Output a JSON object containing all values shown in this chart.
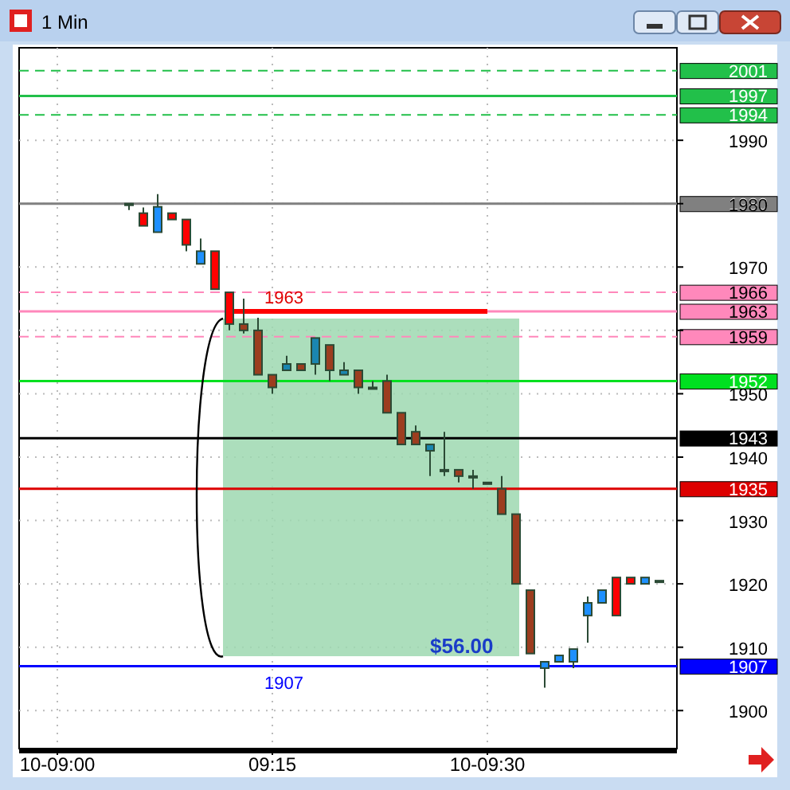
{
  "chart_data": {
    "type": "candlestick",
    "title": "1 Min",
    "categories": [
      "10-09:00",
      null,
      null,
      null,
      null,
      null,
      null,
      null,
      null,
      null,
      null,
      null,
      null,
      null,
      null,
      "09:15",
      null,
      null,
      null,
      null,
      null,
      null,
      null,
      null,
      null,
      null,
      null,
      null,
      null,
      null,
      "10-09:30",
      null,
      null,
      null,
      null,
      null,
      null,
      null,
      null,
      null,
      null,
      null,
      null
    ],
    "ohlc": [
      null,
      null,
      null,
      null,
      null,
      [
        1980,
        1980,
        1979,
        1980
      ],
      [
        1978.5,
        1979.4,
        1976.5,
        1976.5
      ],
      [
        1975.5,
        1981.5,
        1975.5,
        1979.5
      ],
      [
        1978.5,
        1978.5,
        1977.5,
        1977.5
      ],
      [
        1977.5,
        1977.5,
        1972.5,
        1973.5
      ],
      [
        1970.5,
        1974.5,
        1970.5,
        1972.5
      ],
      [
        1972.5,
        1972.5,
        1966.5,
        1966.5
      ],
      [
        1966,
        1966,
        1960,
        1961
      ],
      [
        1961,
        1965,
        1959.5,
        1960
      ],
      [
        1960,
        1962,
        1953,
        1953
      ],
      [
        1953,
        1953,
        1950,
        1951
      ],
      [
        1953.7,
        1956,
        1953.7,
        1954.7
      ],
      [
        1954.7,
        1954.7,
        1953.7,
        1953.7
      ],
      [
        1954.7,
        1958.8,
        1953,
        1958.8
      ],
      [
        1957.7,
        1957.7,
        1952,
        1953.7
      ],
      [
        1953,
        1955,
        1953,
        1953.7
      ],
      [
        1953.7,
        1953.7,
        1950,
        1951
      ],
      [
        1951,
        1952,
        1951,
        1951
      ],
      [
        1952,
        1953,
        1947,
        1947
      ],
      [
        1947,
        1947,
        1942,
        1942
      ],
      [
        1944,
        1945,
        1942,
        1942
      ],
      [
        1941,
        1942,
        1937,
        1942
      ],
      [
        1938,
        1944,
        1937,
        1938
      ],
      [
        1938,
        1938,
        1936,
        1937
      ],
      [
        1937,
        1938,
        1935,
        1937
      ],
      [
        1936,
        1936,
        1936,
        1936
      ],
      [
        1935,
        1937,
        1931,
        1931
      ],
      [
        1931,
        1931,
        1920,
        1920
      ],
      [
        1919,
        1919,
        1909,
        1909
      ],
      [
        1906.7,
        1907.7,
        1903.6,
        1907.7
      ],
      [
        1907.7,
        1908.7,
        1907.7,
        1908.7
      ],
      [
        1907.7,
        1909.7,
        1906.7,
        1909.7
      ],
      [
        1915,
        1918,
        1910.7,
        1917
      ],
      [
        1917,
        1919,
        1917,
        1919
      ],
      [
        1921,
        1921,
        1915,
        1915
      ],
      [
        1921,
        1921,
        1920,
        1920
      ],
      [
        1920,
        1921,
        1920,
        1921
      ],
      [
        1920.5,
        1920.5,
        1920.5,
        1920.5
      ]
    ],
    "colors": [
      null,
      null,
      null,
      null,
      null,
      "#ff0000",
      "#ff0000",
      "#1e90ff",
      "#ff0000",
      "#ff0000",
      "#1e90ff",
      "#ff0000",
      "#ff0000",
      "#9c3d1f",
      "#9c3d1f",
      "#9c3d1f",
      "#1a86b0",
      "#9c3d1f",
      "#1a86b0",
      "#9c3d1f",
      "#1a86b0",
      "#9c3d1f",
      "#9c3d1f",
      "#9c3d1f",
      "#9c3d1f",
      "#9c3d1f",
      "#1a86b0",
      "#9c3d1f",
      "#9c3d1f",
      "#9c3d1f",
      "#9c3d1f",
      "#9c3d1f",
      "#9c3d1f",
      "#9c3d1f",
      "#1e90ff",
      "#1e90ff",
      "#1e90ff",
      "#1e90ff",
      "#1e90ff",
      "#ff0000",
      "#ff0000",
      "#1e90ff",
      "#333333"
    ],
    "series": [
      {
        "type": "line",
        "values": [
          null,
          null,
          null,
          null,
          null,
          null,
          null,
          null,
          null,
          null,
          null,
          null,
          1963,
          1963,
          1963,
          1963,
          1963,
          1963,
          1963,
          1963,
          1963,
          1963,
          1963,
          1963,
          1963,
          1963,
          1963,
          1963,
          1963,
          1963,
          1963,
          null,
          null,
          null,
          null,
          null,
          null,
          null,
          null,
          null,
          null,
          null,
          null
        ],
        "color": "#ff0000"
      }
    ],
    "ylim": [
      1894,
      2004.6
    ],
    "yticks": [
      1900,
      1910,
      1920,
      1930,
      1940,
      1950,
      {
        "value": 1960,
        "label": null
      },
      1970,
      1980,
      1990
    ],
    "grid": true,
    "ref_lines": [
      {
        "axis": "y",
        "value": 2001,
        "label": "2001",
        "color": "#22c04a",
        "line_style": "dashed"
      },
      {
        "axis": "y",
        "value": 1997,
        "label": "1997",
        "color": "#22c04a"
      },
      {
        "axis": "y",
        "value": 1994,
        "label": "1994",
        "color": "#22c04a",
        "line_style": "dashed"
      },
      {
        "axis": "y",
        "value": 1980,
        "label": "1980",
        "color": "#808080"
      },
      {
        "axis": "y",
        "value": 1966,
        "label": "1966",
        "color": "#ff88bb",
        "line_style": "dashed"
      },
      {
        "axis": "y",
        "value": 1963,
        "label": "1963",
        "color": "#ff88bb"
      },
      {
        "axis": "y",
        "value": 1959,
        "label": "1959",
        "color": "#ff88bb",
        "line_style": "dashed"
      },
      {
        "axis": "y",
        "value": 1952,
        "label": "1952",
        "color": "#00e020"
      },
      {
        "axis": "y",
        "value": 1943,
        "label": "1943",
        "color": "#000000"
      },
      {
        "axis": "y",
        "value": 1935,
        "label": "1935",
        "color": "#dd0000"
      },
      {
        "axis": "y",
        "value": 1907,
        "label": "1907",
        "color": "#0000ff"
      }
    ],
    "annotations": [
      {
        "text": "1963",
        "y": 1963
      },
      {
        "text": "1907",
        "y": 1907
      },
      "$56.00"
    ]
  }
}
